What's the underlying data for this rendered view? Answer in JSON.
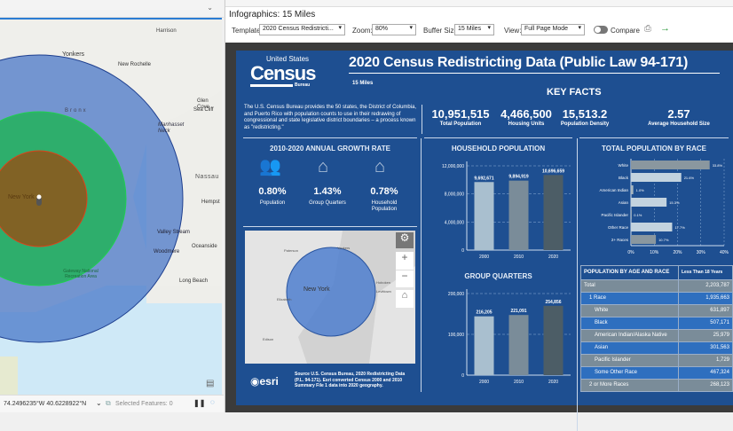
{
  "map": {
    "labels": [
      "Harrison",
      "Yonkers",
      "New Rochelle",
      "Glen Cove",
      "Sea Cliff",
      "Manhasset Neck",
      "Bronx",
      "Nassau",
      "Hempst",
      "New York",
      "Valley Stream",
      "Oceanside",
      "Woodmere",
      "Long Beach",
      "Gateway National Recreation Area"
    ],
    "coords": "74.2496235°W 40.6228922°N",
    "selected_features": "Selected Features: 0"
  },
  "panel": {
    "title": "Infographics: 15 Miles",
    "toolbar": {
      "template_label": "Template:",
      "template_value": "2020 Census Redistricti...",
      "zoom_label": "Zoom:",
      "zoom_value": "80%",
      "buffer_label": "Buffer Size:",
      "buffer_value": "15 Miles",
      "view_label": "View:",
      "view_value": "Full Page Mode",
      "compare_label": "Compare"
    }
  },
  "infographic": {
    "logo": {
      "line1": "United States",
      "line2": "Census",
      "line3": "Bureau"
    },
    "title": "2020 Census Redistricting Data (Public Law 94-171)",
    "subtitle": "15 Miles",
    "key_facts_title": "KEY FACTS",
    "description": "The U.S. Census Bureau provides the 50 states, the District of Columbia, and Puerto Rico with population counts to use in their redrawing of congressional and state legislative district boundaries – a process known as \"redistricting.\"",
    "facts": [
      {
        "value": "10,951,515",
        "label": "Total Population"
      },
      {
        "value": "4,466,500",
        "label": "Housing Units"
      },
      {
        "value": "15,513.2",
        "label": "Population Density"
      },
      {
        "value": "2.57",
        "label": "Average Household Size"
      }
    ],
    "growth": {
      "title": "2010-2020 ANNUAL GROWTH RATE",
      "items": [
        {
          "value": "0.80%",
          "label": "Population"
        },
        {
          "value": "1.43%",
          "label": "Group Quarters"
        },
        {
          "value": "0.78%",
          "label": "Household Population"
        }
      ]
    },
    "minimap": {
      "labels": [
        "Paterson",
        "Yonkers",
        "New York",
        "Elizabeth",
        "Edison",
        "Hoboken",
        "Levittown"
      ]
    },
    "source": "Source U.S. Census Bureau, 2020 Redistricting Data (P.L. 94-171). Esri converted Census 2000 and 2010 Summary File 1 data into 2020 geography.",
    "esri": "esri",
    "table": {
      "header": [
        "POPULATION BY AGE AND RACE",
        "Less Than 18 Years"
      ],
      "rows": [
        [
          "Total",
          "2,203,787"
        ],
        [
          "1 Race",
          "1,935,663"
        ],
        [
          "White",
          "631,897"
        ],
        [
          "Black",
          "507,171"
        ],
        [
          "American Indian/Alaska Native",
          "25,979"
        ],
        [
          "Asian",
          "301,563"
        ],
        [
          "Pacific Islander",
          "1,729"
        ],
        [
          "Some Other Race",
          "467,324"
        ],
        [
          "2 or More Races",
          "268,123"
        ]
      ]
    }
  },
  "chart_data": [
    {
      "type": "bar",
      "title": "HOUSEHOLD POPULATION",
      "categories": [
        "2000",
        "2010",
        "2020"
      ],
      "values": [
        9692671,
        9894919,
        10696659
      ],
      "labels": [
        "9,692,671",
        "9,894,919",
        "10,696,659"
      ],
      "ylim": [
        0,
        12000000
      ],
      "yticks": [
        "0",
        "4,000,000",
        "8,000,000",
        "12,000,000"
      ],
      "colors": [
        "#a9bfcf",
        "#7a8c99",
        "#4c5d66"
      ]
    },
    {
      "type": "bar",
      "title": "GROUP QUARTERS",
      "categories": [
        "2000",
        "2010",
        "2020"
      ],
      "values": [
        216205,
        221091,
        254856
      ],
      "labels": [
        "216,205",
        "221,091",
        "254,856"
      ],
      "ylim": [
        0,
        300000
      ],
      "yticks": [
        "0",
        "100,000",
        "200,000"
      ],
      "colors": [
        "#a9bfcf",
        "#7a8c99",
        "#4c5d66"
      ]
    },
    {
      "type": "bar",
      "orientation": "horizontal",
      "title": "TOTAL POPULATION BY RACE",
      "categories": [
        "White",
        "Black",
        "American Indian",
        "Asian",
        "Pacific Islander",
        "Other Race",
        "2+ Races"
      ],
      "values": [
        33.8,
        21.6,
        1.0,
        15.3,
        0.1,
        17.7,
        10.7
      ],
      "labels": [
        "33.8%",
        "21.6%",
        "1.0%",
        "15.3%",
        "0.1%",
        "17.7%",
        "10.7%"
      ],
      "xlim": [
        0,
        40
      ],
      "xticks": [
        "0%",
        "10%",
        "20%",
        "30%",
        "40%"
      ],
      "colors": [
        "#8a979f",
        "#c3d3df",
        "#a9b7c0",
        "#c3d3df",
        "#a9b7c0",
        "#c3d3df",
        "#8a979f"
      ]
    }
  ]
}
